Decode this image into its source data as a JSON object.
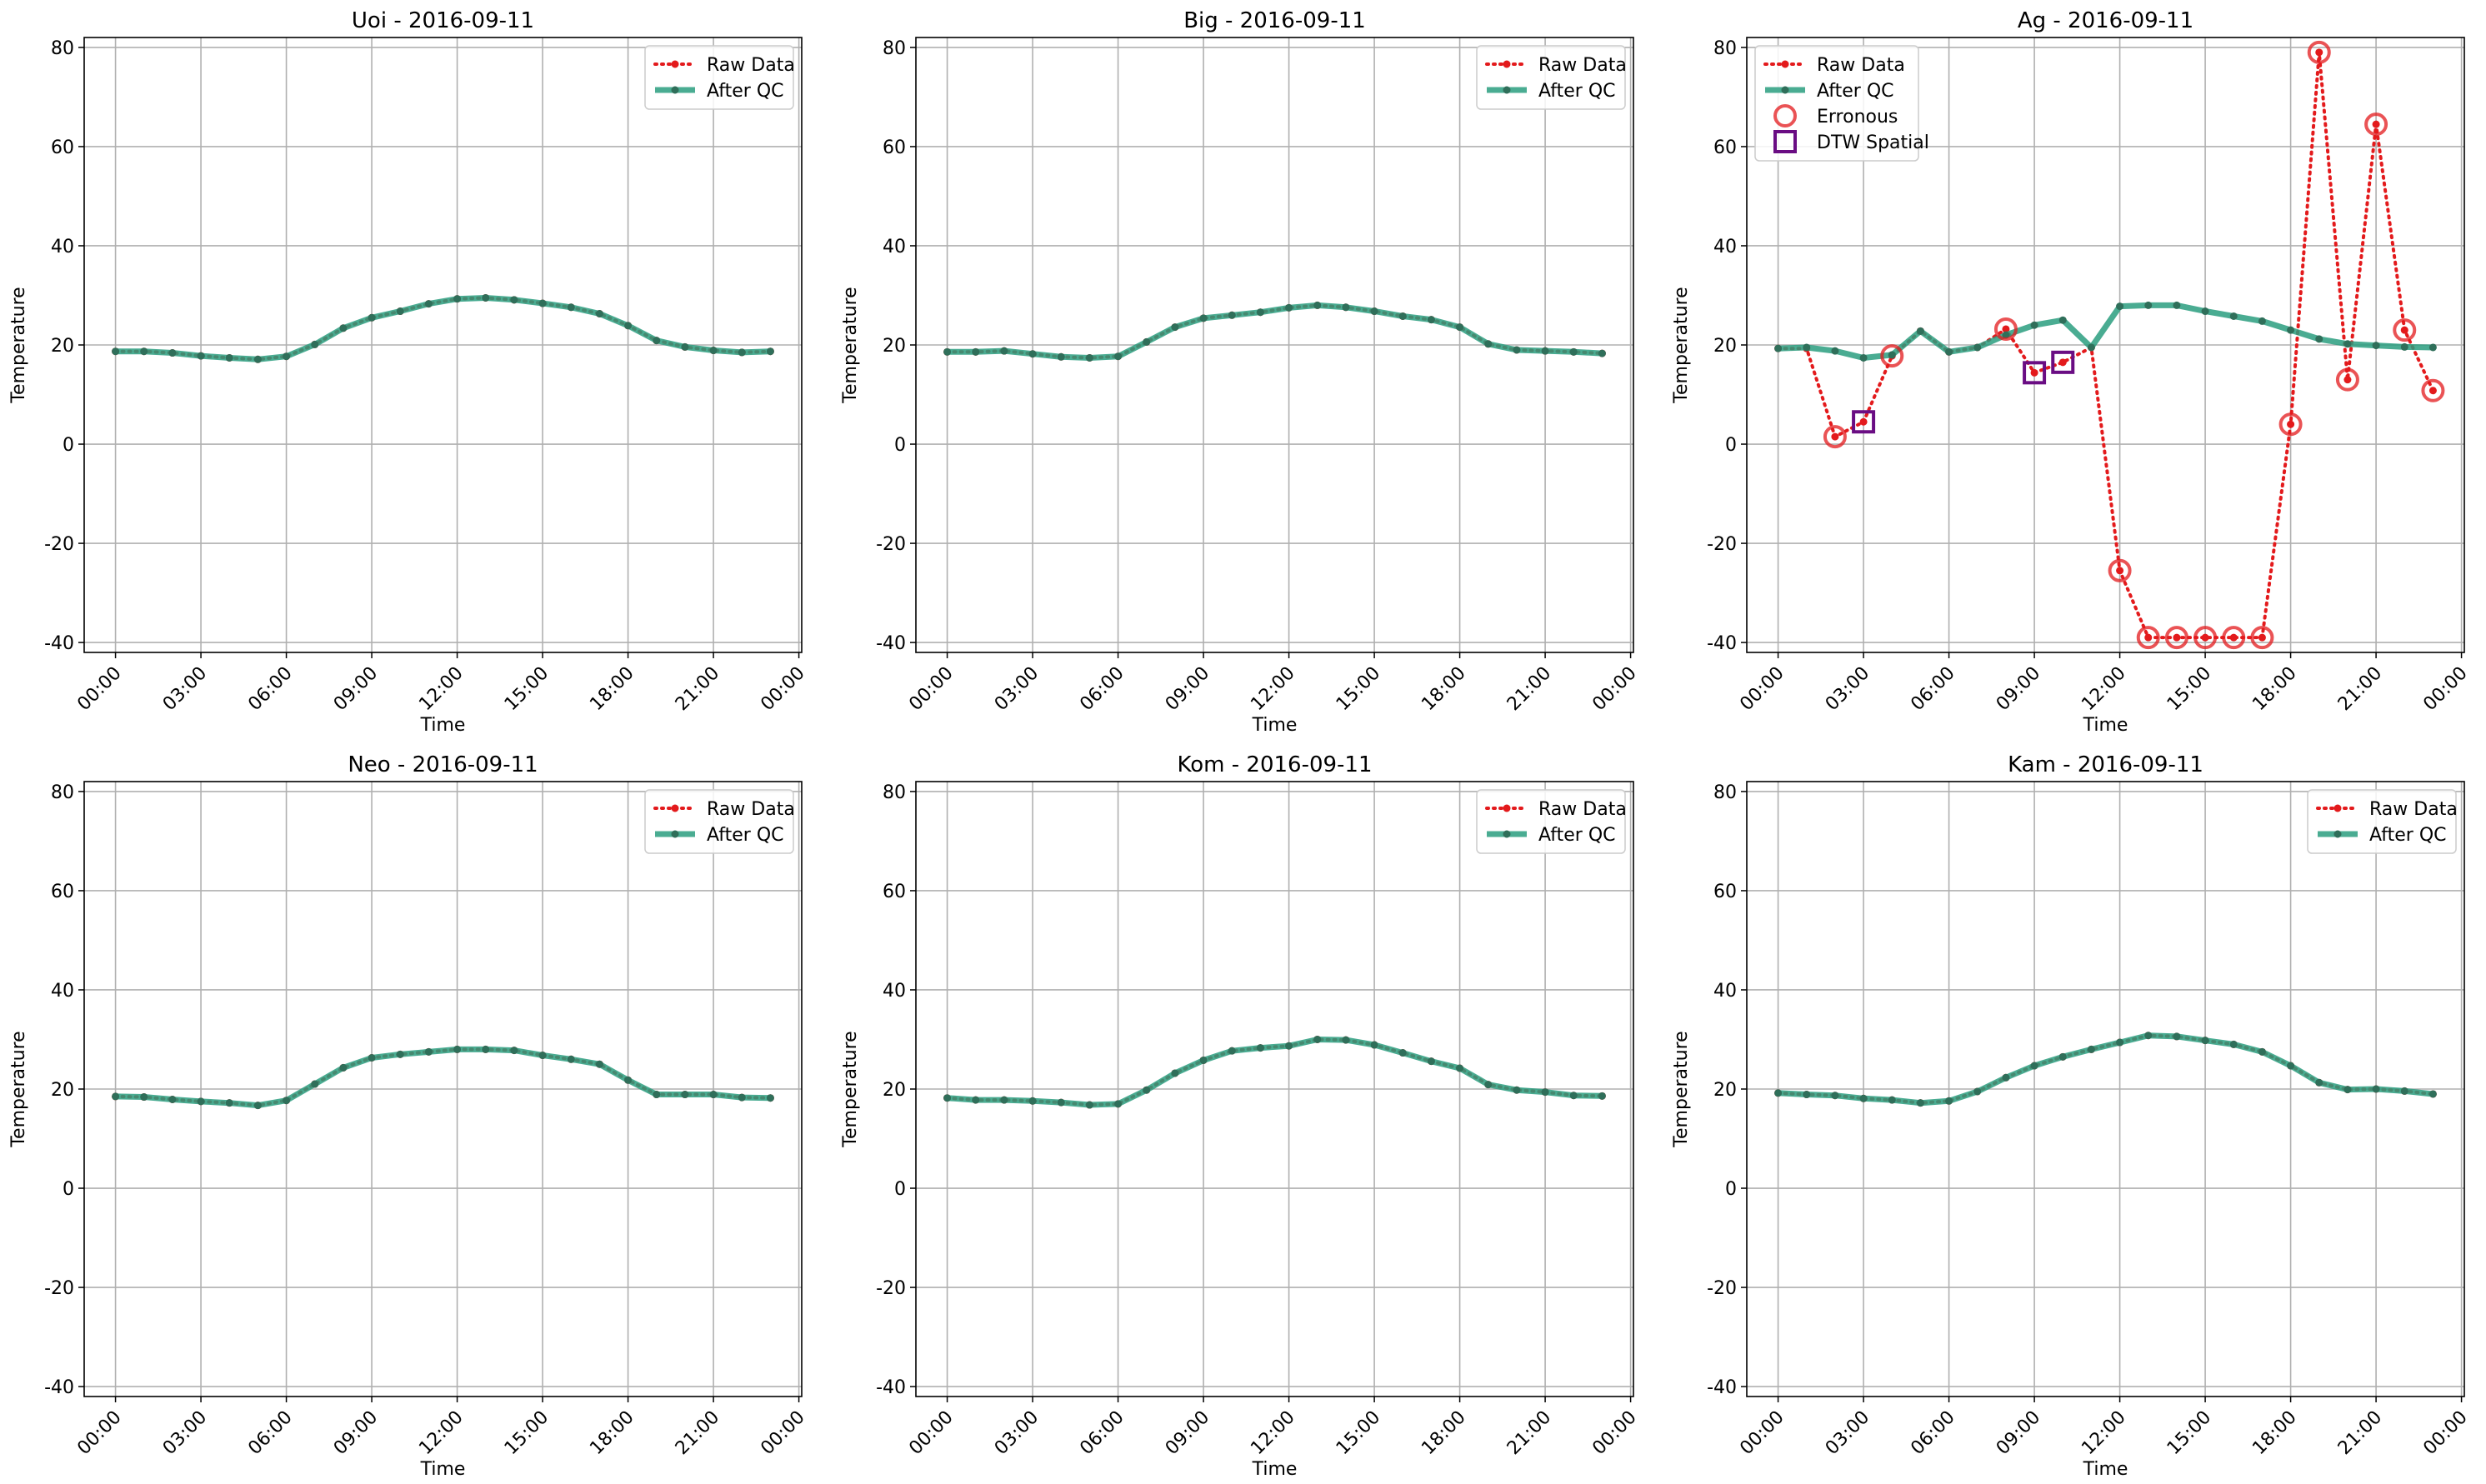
{
  "colors": {
    "raw": "#e31a1c",
    "after_qc": "#2a9d7f",
    "after_qc_marker": "#2f6f5a",
    "erroneous": "#e31a1c",
    "dtw": "#6a0d83",
    "grid": "#b0b0b0"
  },
  "x_tick_labels": [
    "00:00",
    "03:00",
    "06:00",
    "09:00",
    "12:00",
    "15:00",
    "18:00",
    "21:00",
    "00:00"
  ],
  "chart_data": [
    {
      "type": "line",
      "title": "Uoi - 2016-09-11",
      "xlabel": "Time",
      "ylabel": "Temperature",
      "xlim": [
        -1.1,
        24.1
      ],
      "ylim": [
        -42,
        82
      ],
      "yticks": [
        -40,
        -20,
        0,
        20,
        40,
        60,
        80
      ],
      "x_hours": [
        0,
        1,
        2,
        3,
        4,
        5,
        6,
        7,
        8,
        9,
        10,
        11,
        12,
        13,
        14,
        15,
        16,
        17,
        18,
        19,
        20,
        21,
        22,
        23
      ],
      "grid": true,
      "legend": {
        "position": "upper right",
        "entries": [
          "Raw Data",
          "After QC"
        ]
      },
      "series": [
        {
          "name": "Raw Data",
          "values": [
            18.7,
            18.7,
            18.4,
            17.8,
            17.4,
            17.1,
            17.7,
            20.1,
            23.4,
            25.5,
            26.8,
            28.3,
            29.3,
            29.5,
            29.1,
            28.4,
            27.6,
            26.3,
            23.9,
            20.9,
            19.6,
            18.9,
            18.5,
            18.7
          ]
        },
        {
          "name": "After QC",
          "values": [
            18.7,
            18.7,
            18.4,
            17.8,
            17.4,
            17.1,
            17.7,
            20.1,
            23.4,
            25.5,
            26.8,
            28.3,
            29.3,
            29.5,
            29.1,
            28.4,
            27.6,
            26.3,
            23.9,
            20.9,
            19.6,
            18.9,
            18.5,
            18.7
          ]
        }
      ]
    },
    {
      "type": "line",
      "title": "Big - 2016-09-11",
      "xlabel": "Time",
      "ylabel": "Temperature",
      "xlim": [
        -1.1,
        24.1
      ],
      "ylim": [
        -42,
        82
      ],
      "yticks": [
        -40,
        -20,
        0,
        20,
        40,
        60,
        80
      ],
      "x_hours": [
        0,
        1,
        2,
        3,
        4,
        5,
        6,
        7,
        8,
        9,
        10,
        11,
        12,
        13,
        14,
        15,
        16,
        17,
        18,
        19,
        20,
        21,
        22,
        23
      ],
      "grid": true,
      "legend": {
        "position": "upper right",
        "entries": [
          "Raw Data",
          "After QC"
        ]
      },
      "series": [
        {
          "name": "Raw Data",
          "values": [
            18.6,
            18.6,
            18.8,
            18.2,
            17.6,
            17.4,
            17.7,
            20.6,
            23.6,
            25.4,
            26.0,
            26.6,
            27.5,
            28.0,
            27.6,
            26.8,
            25.8,
            25.1,
            23.6,
            20.2,
            19.0,
            18.8,
            18.6,
            18.3
          ]
        },
        {
          "name": "After QC",
          "values": [
            18.6,
            18.6,
            18.8,
            18.2,
            17.6,
            17.4,
            17.7,
            20.6,
            23.6,
            25.4,
            26.0,
            26.6,
            27.5,
            28.0,
            27.6,
            26.8,
            25.8,
            25.1,
            23.6,
            20.2,
            19.0,
            18.8,
            18.6,
            18.3
          ]
        }
      ]
    },
    {
      "type": "line",
      "title": "Ag - 2016-09-11",
      "xlabel": "Time",
      "ylabel": "Temperature",
      "xlim": [
        -1.1,
        24.1
      ],
      "ylim": [
        -42,
        82
      ],
      "yticks": [
        -40,
        -20,
        0,
        20,
        40,
        60,
        80
      ],
      "x_hours": [
        0,
        1,
        2,
        3,
        4,
        5,
        6,
        7,
        8,
        9,
        10,
        11,
        12,
        13,
        14,
        15,
        16,
        17,
        18,
        19,
        20,
        21,
        22,
        23
      ],
      "grid": true,
      "legend": {
        "position": "upper left",
        "entries": [
          "Raw Data",
          "After QC",
          "Erronous",
          "DTW Spatial"
        ]
      },
      "series": [
        {
          "name": "Raw Data",
          "values": [
            19.3,
            19.3,
            1.5,
            4.5,
            17.8,
            22.8,
            18.6,
            19.5,
            23.2,
            14.4,
            16.5,
            19.5,
            -25.5,
            -39,
            -39,
            -39,
            -39,
            -39,
            4.0,
            79,
            13.0,
            64.5,
            23.0,
            10.8
          ]
        },
        {
          "name": "After QC",
          "values": [
            19.3,
            19.5,
            18.8,
            17.4,
            18.0,
            22.8,
            18.6,
            19.5,
            22.0,
            24.0,
            25.0,
            19.5,
            27.8,
            28.0,
            28.0,
            26.8,
            25.8,
            24.8,
            23.0,
            21.2,
            20.2,
            19.9,
            19.6,
            19.5
          ]
        }
      ],
      "erroneous_hours": [
        2,
        4,
        8,
        12,
        13,
        14,
        15,
        16,
        17,
        18,
        19,
        20,
        21,
        22,
        23
      ],
      "dtw_spatial_hours": [
        3,
        9,
        10
      ]
    },
    {
      "type": "line",
      "title": "Neo - 2016-09-11",
      "xlabel": "Time",
      "ylabel": "Temperature",
      "xlim": [
        -1.1,
        24.1
      ],
      "ylim": [
        -42,
        82
      ],
      "yticks": [
        -40,
        -20,
        0,
        20,
        40,
        60,
        80
      ],
      "x_hours": [
        0,
        1,
        2,
        3,
        4,
        5,
        6,
        7,
        8,
        9,
        10,
        11,
        12,
        13,
        14,
        15,
        16,
        17,
        18,
        19,
        20,
        21,
        22,
        23
      ],
      "grid": true,
      "legend": {
        "position": "upper right",
        "entries": [
          "Raw Data",
          "After QC"
        ]
      },
      "series": [
        {
          "name": "Raw Data",
          "values": [
            18.5,
            18.4,
            17.9,
            17.5,
            17.2,
            16.7,
            17.7,
            21.0,
            24.3,
            26.3,
            27.0,
            27.5,
            28.0,
            28.0,
            27.8,
            26.8,
            26.0,
            25.0,
            21.8,
            18.9,
            18.9,
            18.9,
            18.3,
            18.2
          ]
        },
        {
          "name": "After QC",
          "values": [
            18.5,
            18.4,
            17.9,
            17.5,
            17.2,
            16.7,
            17.7,
            21.0,
            24.3,
            26.3,
            27.0,
            27.5,
            28.0,
            28.0,
            27.8,
            26.8,
            26.0,
            25.0,
            21.8,
            18.9,
            18.9,
            18.9,
            18.3,
            18.2
          ]
        }
      ]
    },
    {
      "type": "line",
      "title": "Kom - 2016-09-11",
      "xlabel": "Time",
      "ylabel": "Temperature",
      "xlim": [
        -1.1,
        24.1
      ],
      "ylim": [
        -42,
        82
      ],
      "yticks": [
        -40,
        -20,
        0,
        20,
        40,
        60,
        80
      ],
      "x_hours": [
        0,
        1,
        2,
        3,
        4,
        5,
        6,
        7,
        8,
        9,
        10,
        11,
        12,
        13,
        14,
        15,
        16,
        17,
        18,
        19,
        20,
        21,
        22,
        23
      ],
      "grid": true,
      "legend": {
        "position": "upper right",
        "entries": [
          "Raw Data",
          "After QC"
        ]
      },
      "series": [
        {
          "name": "Raw Data",
          "values": [
            18.2,
            17.8,
            17.8,
            17.6,
            17.3,
            16.8,
            17.0,
            19.8,
            23.2,
            25.8,
            27.7,
            28.3,
            28.7,
            30.0,
            29.9,
            28.9,
            27.3,
            25.6,
            24.2,
            20.9,
            19.8,
            19.4,
            18.7,
            18.6
          ]
        },
        {
          "name": "After QC",
          "values": [
            18.2,
            17.8,
            17.8,
            17.6,
            17.3,
            16.8,
            17.0,
            19.8,
            23.2,
            25.8,
            27.7,
            28.3,
            28.7,
            30.0,
            29.9,
            28.9,
            27.3,
            25.6,
            24.2,
            20.9,
            19.8,
            19.4,
            18.7,
            18.6
          ]
        }
      ]
    },
    {
      "type": "line",
      "title": "Kam - 2016-09-11",
      "xlabel": "Time",
      "ylabel": "Temperature",
      "xlim": [
        -1.1,
        24.1
      ],
      "ylim": [
        -42,
        82
      ],
      "yticks": [
        -40,
        -20,
        0,
        20,
        40,
        60,
        80
      ],
      "x_hours": [
        0,
        1,
        2,
        3,
        4,
        5,
        6,
        7,
        8,
        9,
        10,
        11,
        12,
        13,
        14,
        15,
        16,
        17,
        18,
        19,
        20,
        21,
        22,
        23
      ],
      "grid": true,
      "legend": {
        "position": "upper right",
        "entries": [
          "Raw Data",
          "After QC"
        ]
      },
      "series": [
        {
          "name": "Raw Data",
          "values": [
            19.2,
            18.9,
            18.7,
            18.1,
            17.8,
            17.2,
            17.6,
            19.5,
            22.3,
            24.7,
            26.5,
            28.0,
            29.4,
            30.8,
            30.6,
            29.8,
            29.0,
            27.5,
            24.7,
            21.3,
            19.9,
            20.0,
            19.6,
            19.0
          ]
        },
        {
          "name": "After QC",
          "values": [
            19.2,
            18.9,
            18.7,
            18.1,
            17.8,
            17.2,
            17.6,
            19.5,
            22.3,
            24.7,
            26.5,
            28.0,
            29.4,
            30.8,
            30.6,
            29.8,
            29.0,
            27.5,
            24.7,
            21.3,
            19.9,
            20.0,
            19.6,
            19.0
          ]
        }
      ]
    }
  ]
}
